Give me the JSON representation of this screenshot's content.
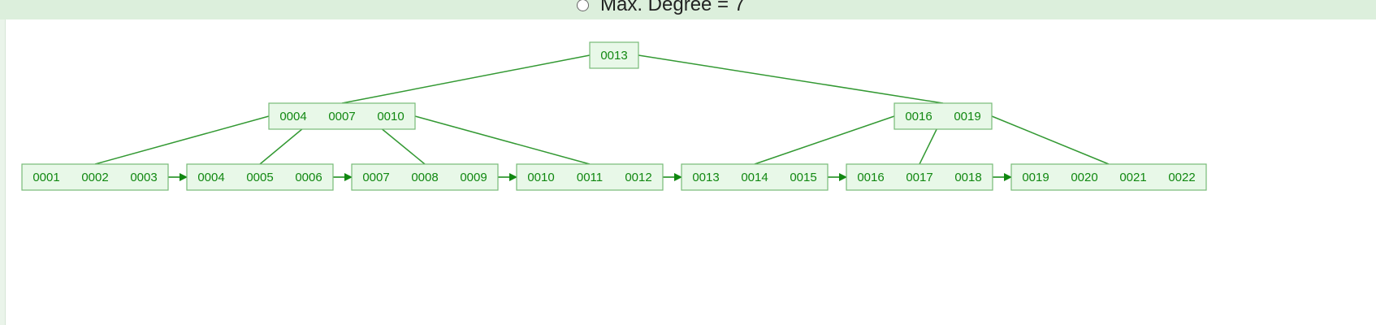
{
  "controls": {
    "degree_label": "Max. Degree = 7"
  },
  "tree": {
    "colors": {
      "node_fill": "#e8f8e8",
      "node_stroke": "#77bb77",
      "edge": "#339933",
      "text": "#118811",
      "arrow": "#118811"
    },
    "root": {
      "keys": [
        "0013"
      ]
    },
    "internal": [
      {
        "keys": [
          "0004",
          "0007",
          "0010"
        ]
      },
      {
        "keys": [
          "0016",
          "0019"
        ]
      }
    ],
    "leaves": [
      {
        "keys": [
          "0001",
          "0002",
          "0003"
        ]
      },
      {
        "keys": [
          "0004",
          "0005",
          "0006"
        ]
      },
      {
        "keys": [
          "0007",
          "0008",
          "0009"
        ]
      },
      {
        "keys": [
          "0010",
          "0011",
          "0012"
        ]
      },
      {
        "keys": [
          "0013",
          "0014",
          "0015"
        ]
      },
      {
        "keys": [
          "0016",
          "0017",
          "0018"
        ]
      },
      {
        "keys": [
          "0019",
          "0020",
          "0021",
          "0022"
        ]
      }
    ]
  }
}
